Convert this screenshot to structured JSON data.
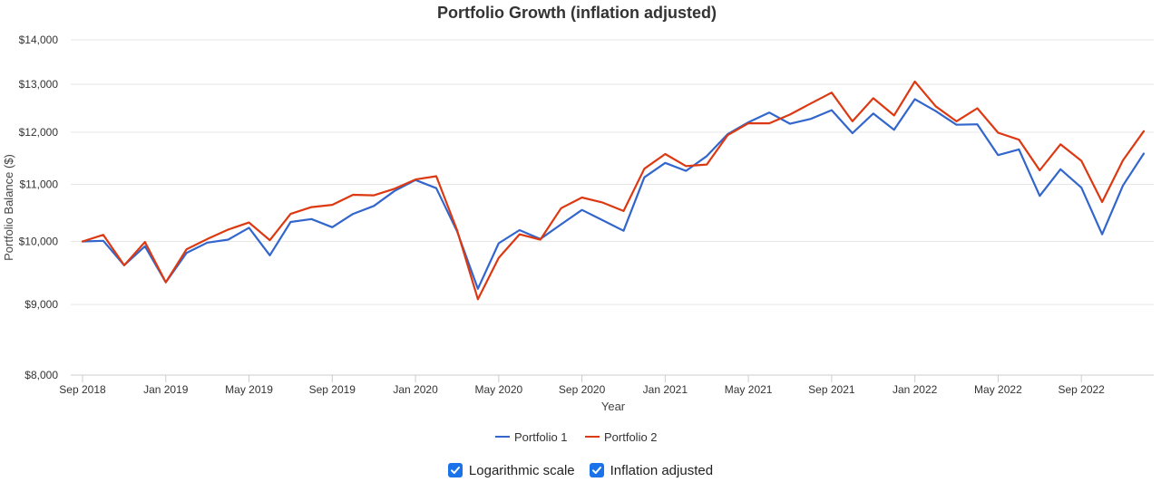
{
  "chart_data": {
    "type": "line",
    "title": "Portfolio Growth (inflation adjusted)",
    "xlabel": "Year",
    "ylabel": "Portfolio Balance ($)",
    "yscale": "log",
    "ylim": [
      8000,
      14000
    ],
    "yticks": [
      8000,
      9000,
      10000,
      11000,
      12000,
      13000,
      14000
    ],
    "ytick_labels": [
      "$8,000",
      "$9,000",
      "$10,000",
      "$11,000",
      "$12,000",
      "$13,000",
      "$14,000"
    ],
    "x": [
      "2018-09",
      "2018-10",
      "2018-11",
      "2018-12",
      "2019-01",
      "2019-02",
      "2019-03",
      "2019-04",
      "2019-05",
      "2019-06",
      "2019-07",
      "2019-08",
      "2019-09",
      "2019-10",
      "2019-11",
      "2019-12",
      "2020-01",
      "2020-02",
      "2020-03",
      "2020-04",
      "2020-05",
      "2020-06",
      "2020-07",
      "2020-08",
      "2020-09",
      "2020-10",
      "2020-11",
      "2020-12",
      "2021-01",
      "2021-02",
      "2021-03",
      "2021-04",
      "2021-05",
      "2021-06",
      "2021-07",
      "2021-08",
      "2021-09",
      "2021-10",
      "2021-11",
      "2021-12",
      "2022-01",
      "2022-02",
      "2022-03",
      "2022-04",
      "2022-05",
      "2022-06",
      "2022-07",
      "2022-08",
      "2022-09",
      "2022-10",
      "2022-11",
      "2022-12"
    ],
    "xticks": [
      "Sep 2018",
      "Jan 2019",
      "May 2019",
      "Sep 2019",
      "Jan 2020",
      "May 2020",
      "Sep 2020",
      "Jan 2021",
      "May 2021",
      "Sep 2021",
      "Jan 2022",
      "May 2022",
      "Sep 2022"
    ],
    "xtick_index": [
      0,
      4,
      8,
      12,
      16,
      20,
      24,
      28,
      32,
      36,
      40,
      44,
      48
    ],
    "legend_position": "bottom-center",
    "grid": "horizontal",
    "series": [
      {
        "name": "Portfolio 1",
        "color": "#3366cc",
        "values": [
          10000,
          10010,
          9610,
          9920,
          9340,
          9810,
          9980,
          10030,
          10230,
          9770,
          10330,
          10380,
          10240,
          10470,
          10610,
          10880,
          11080,
          10930,
          10170,
          9240,
          9970,
          10190,
          10040,
          10290,
          10540,
          10360,
          10180,
          11130,
          11400,
          11250,
          11530,
          11960,
          12200,
          12400,
          12170,
          12270,
          12450,
          11980,
          12380,
          12050,
          12680,
          12430,
          12150,
          12160,
          11550,
          11660,
          10790,
          11280,
          10940,
          10120,
          10980,
          11580
        ]
      },
      {
        "name": "Portfolio 2",
        "color": "#dc3912",
        "values": [
          10000,
          10110,
          9610,
          9990,
          9340,
          9870,
          10040,
          10200,
          10320,
          10020,
          10470,
          10590,
          10630,
          10810,
          10800,
          10920,
          11090,
          11150,
          10190,
          9080,
          9730,
          10120,
          10030,
          10570,
          10760,
          10670,
          10520,
          11290,
          11570,
          11340,
          11370,
          11940,
          12180,
          12180,
          12360,
          12590,
          12820,
          12220,
          12700,
          12340,
          13060,
          12530,
          12220,
          12490,
          11990,
          11850,
          11260,
          11760,
          11440,
          10680,
          11450,
          12020
        ]
      }
    ]
  },
  "controls": {
    "log_scale_label": "Logarithmic scale",
    "log_scale_checked": true,
    "inflation_label": "Inflation adjusted",
    "inflation_checked": true,
    "checkbox_color": "#1a73e8"
  }
}
